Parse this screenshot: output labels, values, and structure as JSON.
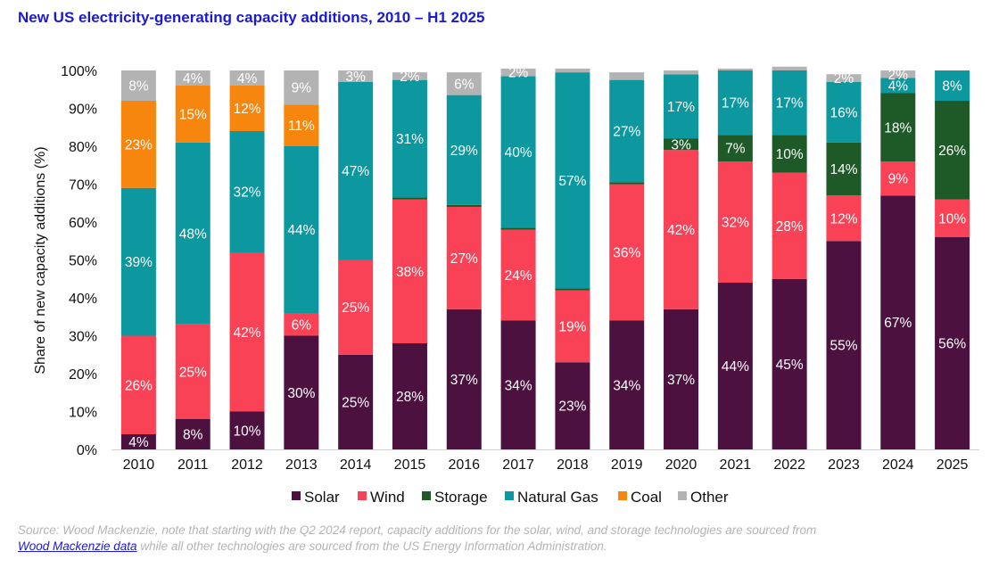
{
  "chart_data": {
    "type": "bar",
    "stacked": true,
    "title": "New US electricity-generating capacity additions, 2010 – H1 2025",
    "ylabel": "Share of new capacity additions (%)",
    "xlabel": "",
    "ylim": [
      0,
      100
    ],
    "yticks": [
      "0%",
      "10%",
      "20%",
      "30%",
      "40%",
      "50%",
      "60%",
      "70%",
      "80%",
      "90%",
      "100%"
    ],
    "categories": [
      "2010",
      "2011",
      "2012",
      "2013",
      "2014",
      "2015",
      "2016",
      "2017",
      "2018",
      "2019",
      "2020",
      "2021",
      "2022",
      "2023",
      "2024",
      "2025"
    ],
    "series": [
      {
        "name": "Solar",
        "color": "#4d1140",
        "label_color": "#ffffff",
        "values": [
          4,
          8,
          10,
          30,
          25,
          28,
          37,
          34,
          23,
          34,
          37,
          44,
          45,
          55,
          67,
          56
        ],
        "labels": [
          "4%",
          "8%",
          "10%",
          "30%",
          "25%",
          "28%",
          "37%",
          "34%",
          "23%",
          "34%",
          "37%",
          "44%",
          "45%",
          "55%",
          "67%",
          "56%"
        ]
      },
      {
        "name": "Wind",
        "color": "#fa4256",
        "label_color": "#ffffff",
        "values": [
          26,
          25,
          42,
          6,
          25,
          38,
          27,
          24,
          19,
          36,
          42,
          32,
          28,
          12,
          9,
          10
        ],
        "labels": [
          "26%",
          "25%",
          "42%",
          "6%",
          "25%",
          "38%",
          "27%",
          "24%",
          "19%",
          "36%",
          "42%",
          "32%",
          "28%",
          "12%",
          "9%",
          "10%"
        ]
      },
      {
        "name": "Storage",
        "color": "#1e5928",
        "label_color": "#ffffff",
        "values": [
          0,
          0,
          0,
          0,
          0,
          0.5,
          0.5,
          0.5,
          0.5,
          0.5,
          3,
          7,
          10,
          14,
          18,
          26
        ],
        "labels": [
          "",
          "",
          "",
          "",
          "",
          "",
          "",
          "",
          "",
          "",
          "3%",
          "7%",
          "10%",
          "14%",
          "18%",
          "26%"
        ]
      },
      {
        "name": "Natural Gas",
        "color": "#0d979e",
        "label_color": "#ffffff",
        "values": [
          39,
          48,
          32,
          44,
          47,
          31,
          29,
          40,
          57,
          27,
          17,
          17,
          17,
          16,
          4,
          8
        ],
        "labels": [
          "39%",
          "48%",
          "32%",
          "44%",
          "47%",
          "31%",
          "29%",
          "40%",
          "57%",
          "27%",
          "17%",
          "17%",
          "17%",
          "16%",
          "4%",
          "8%"
        ]
      },
      {
        "name": "Coal",
        "color": "#f7860f",
        "label_color": "#ffffff",
        "values": [
          23,
          15,
          12,
          11,
          0,
          0,
          0,
          0,
          0,
          0,
          0,
          0,
          0,
          0,
          0,
          0
        ],
        "labels": [
          "23%",
          "15%",
          "12%",
          "11%",
          "",
          "",
          "",
          "",
          "",
          "",
          "",
          "",
          "",
          "",
          "",
          ""
        ]
      },
      {
        "name": "Other",
        "color": "#b3b3b3",
        "label_color": "#ffffff",
        "values": [
          8,
          4,
          4,
          9,
          3,
          2,
          6,
          2,
          1,
          2,
          1,
          0.5,
          1,
          2,
          2,
          0
        ],
        "labels": [
          "8%",
          "4%",
          "4%",
          "9%",
          "3%",
          "2%",
          "6%",
          "2%",
          "",
          "",
          "",
          "",
          "",
          "2%",
          "2%",
          ""
        ]
      }
    ],
    "legend": [
      "Solar",
      "Wind",
      "Storage",
      "Natural Gas",
      "Coal",
      "Other"
    ],
    "legend_position": "bottom",
    "grid": false
  },
  "source": {
    "text_before": "Source: Wood Mackenzie, note that starting with the Q2 2024 report, capacity additions for the solar, wind, and storage technologies are sourced from",
    "link_text": "Wood Mackenzie data",
    "text_after": "while all other technologies are sourced from the US Energy Information Administration."
  }
}
